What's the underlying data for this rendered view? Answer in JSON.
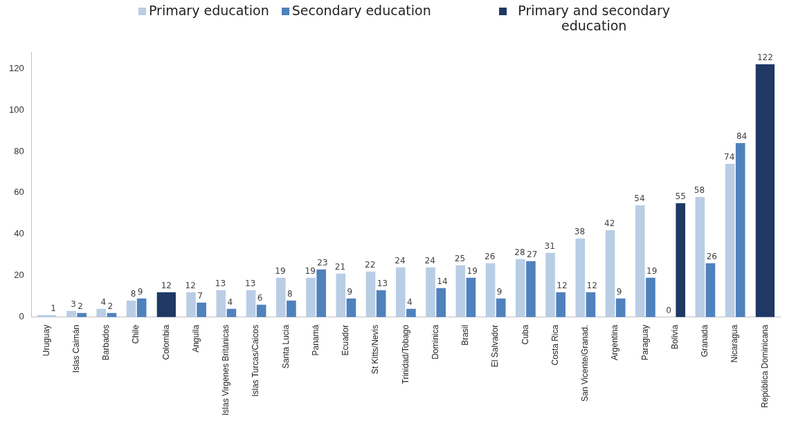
{
  "chart_data": {
    "type": "bar",
    "categories": [
      "Uruguay",
      "Islas Caimán",
      "Barbados",
      "Chile",
      "Colombia",
      "Anguila",
      "Islas Virgenes Británicas",
      "Islas Turcas/Caicos",
      "Santa Lucia",
      "Panamá",
      "Ecuador",
      "St Kitts/Nevis",
      "Trinidad/Tobago",
      "Dominica",
      "Brasil",
      "El Salvador",
      "Cuba",
      "Costa Rica",
      "San Vicente/Granad.",
      "Argentina",
      "Paraguay",
      "Bolivia",
      "Granada",
      "Nicaragua",
      "República Dominicana"
    ],
    "series": [
      {
        "name": "Primary education",
        "color": "#b9cde5",
        "values": [
          1,
          3,
          4,
          8,
          null,
          12,
          13,
          13,
          19,
          19,
          21,
          22,
          24,
          24,
          25,
          26,
          28,
          31,
          38,
          42,
          54,
          null,
          58,
          74,
          null
        ]
      },
      {
        "name": "Secondary education",
        "color": "#4f81bd",
        "values": [
          null,
          2,
          2,
          9,
          null,
          7,
          4,
          6,
          8,
          23,
          9,
          13,
          4,
          14,
          19,
          9,
          27,
          12,
          12,
          9,
          19,
          0,
          26,
          84,
          null
        ]
      },
      {
        "name": "Primary and secondary education",
        "color": "#1f3864",
        "values": [
          null,
          null,
          null,
          null,
          12,
          null,
          null,
          null,
          null,
          null,
          null,
          null,
          null,
          null,
          null,
          null,
          null,
          null,
          null,
          null,
          null,
          55,
          null,
          null,
          122
        ]
      }
    ],
    "ylim": [
      0,
      128
    ],
    "yticks": [
      0,
      20,
      40,
      60,
      80,
      100,
      120
    ],
    "grid": false,
    "legend": "top",
    "data_labels": true
  }
}
